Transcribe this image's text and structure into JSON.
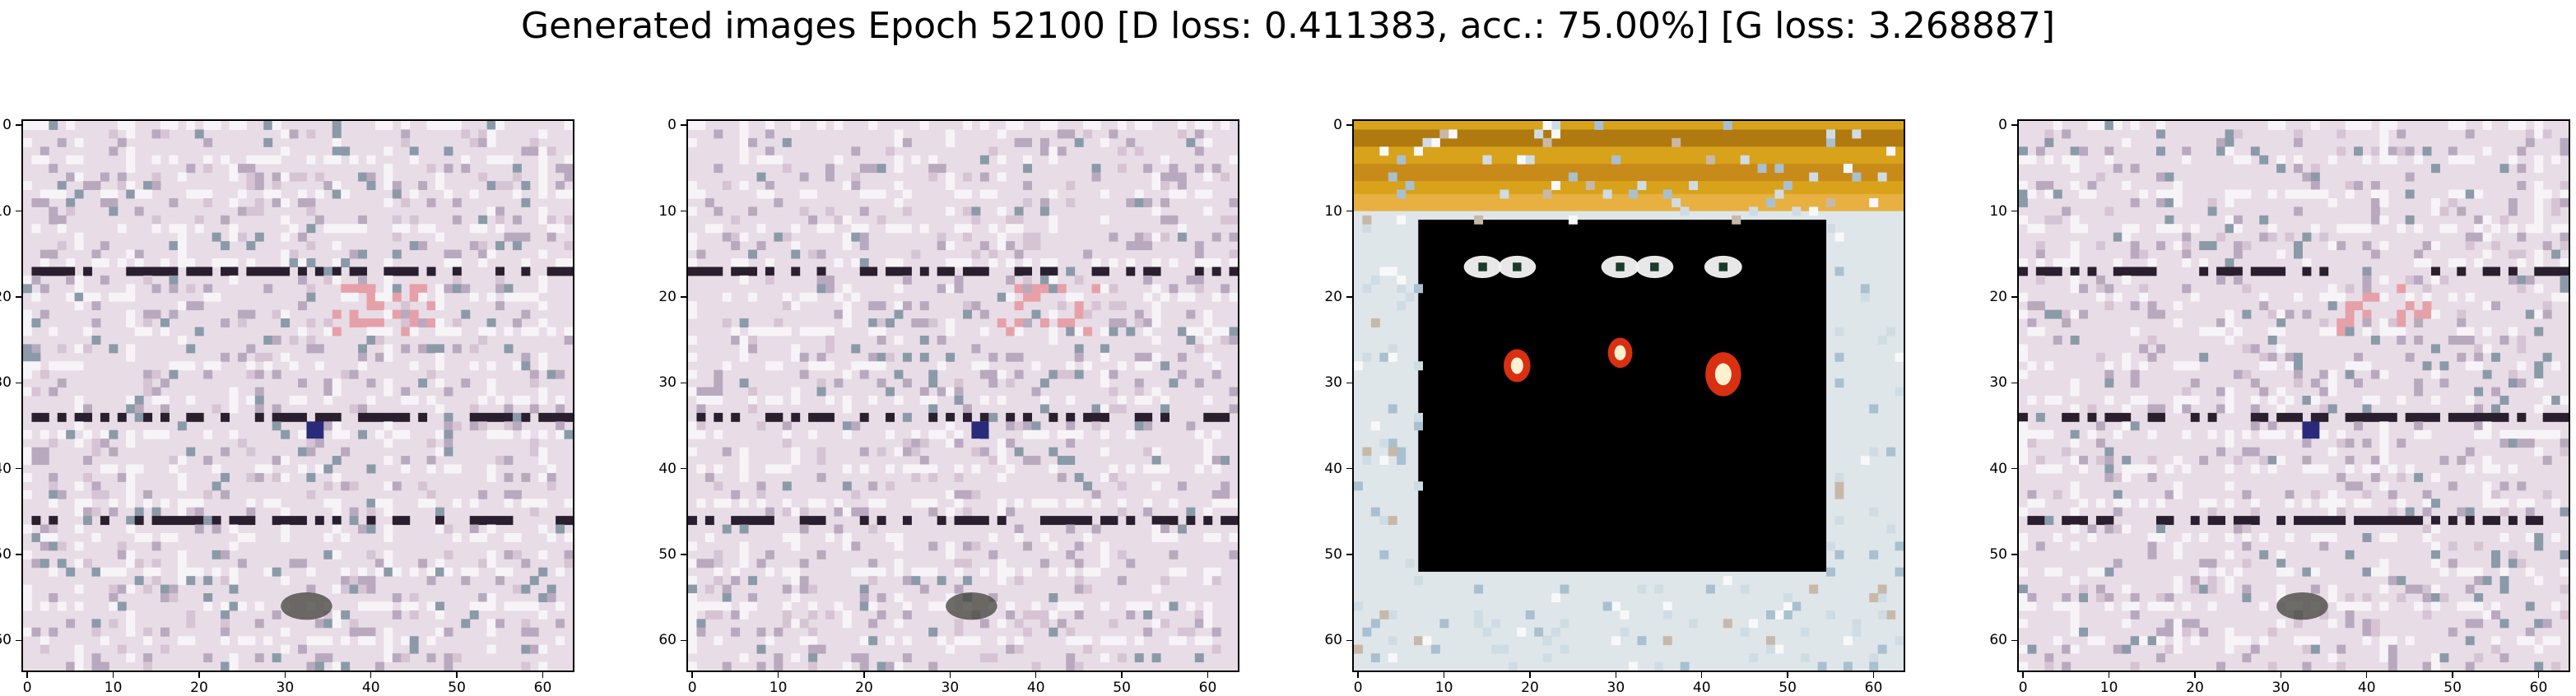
{
  "title": "Generated images Epoch 52100 [D loss: 0.411383, acc.: 75.00%] [G loss: 3.268887]",
  "panels": [
    {
      "id": "image-1",
      "style": "noise",
      "y_ticks": [
        "0",
        "10",
        "20",
        "30",
        "40",
        "50",
        "60"
      ],
      "x_ticks": [
        "0",
        "10",
        "20",
        "30",
        "40",
        "50",
        "60"
      ]
    },
    {
      "id": "image-2",
      "style": "noise",
      "y_ticks": [
        "0",
        "10",
        "20",
        "30",
        "40",
        "50",
        "60"
      ],
      "x_ticks": [
        "0",
        "10",
        "20",
        "30",
        "40",
        "50",
        "60"
      ]
    },
    {
      "id": "image-3",
      "style": "dark",
      "y_ticks": [
        "0",
        "10",
        "20",
        "30",
        "40",
        "50",
        "60"
      ],
      "x_ticks": [
        "0",
        "10",
        "20",
        "30",
        "40",
        "50",
        "60"
      ]
    },
    {
      "id": "image-4",
      "style": "noise",
      "y_ticks": [
        "0",
        "10",
        "20",
        "30",
        "40",
        "50",
        "60"
      ],
      "x_ticks": [
        "0",
        "10",
        "20",
        "30",
        "40",
        "50",
        "60"
      ]
    }
  ]
}
